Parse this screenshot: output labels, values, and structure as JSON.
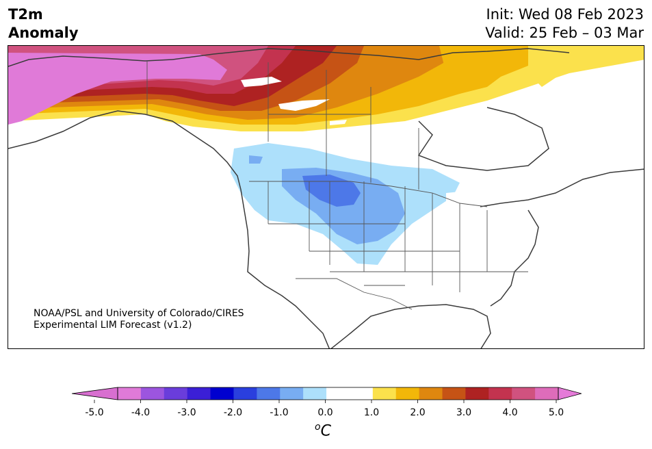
{
  "header": {
    "title_line1": "T2m",
    "title_line2": "Anomaly",
    "init": "Init: Wed 08 Feb 2023",
    "valid": "Valid: 25 Feb – 03 Mar"
  },
  "credit": {
    "line1": "NOAA/PSL and University of Colorado/CIRES",
    "line2": "Experimental LIM Forecast (v1.2)"
  },
  "colorbar": {
    "unit_base": "o",
    "unit_letter": "C",
    "tick_labels": [
      "-5.0",
      "-4.0",
      "-3.0",
      "-2.0",
      "-1.0",
      "0.0",
      "1.0",
      "2.0",
      "3.0",
      "4.0",
      "5.0"
    ],
    "colors": [
      "#e07ad8",
      "#9c55df",
      "#6a3ddb",
      "#3b1fd6",
      "#0000cf",
      "#2a3fde",
      "#4d78e8",
      "#78adf2",
      "#ade0fb",
      "#ffffff",
      "#ffffff",
      "#fbe14c",
      "#f2b709",
      "#df870f",
      "#c65315",
      "#ae2222",
      "#c3334f",
      "#d0527f",
      "#de6cba"
    ],
    "min_color": "#d86fd0",
    "max_color": "#e57bd8"
  },
  "map": {
    "land_fill": "#ffffff",
    "coast_color": "#3a3a3a",
    "lake_fill": "#ffffff"
  }
}
